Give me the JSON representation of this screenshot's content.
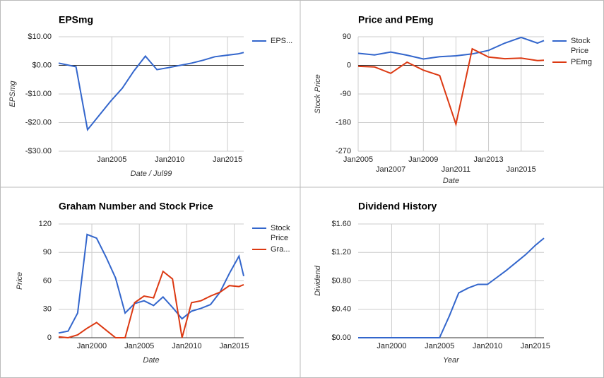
{
  "chart_data": [
    {
      "type": "line",
      "title": "EPSmg",
      "y_label": "EPSmg",
      "x_label": "Date / Jul99",
      "x": [
        2000.4,
        2001.9,
        2002.9,
        2003.9,
        2004.9,
        2005.9,
        2006.9,
        2007.9,
        2008.9,
        2009.9,
        2010.9,
        2011.9,
        2012.9,
        2013.9,
        2014.9,
        2015.9,
        2016.4
      ],
      "series": [
        {
          "name": "EPS...",
          "color": "#3366cc",
          "values": [
            0.8,
            -0.5,
            -22.5,
            -17.5,
            -12.5,
            -8,
            -2,
            3.2,
            -1.5,
            -0.8,
            0,
            0.8,
            1.8,
            3,
            3.5,
            4,
            4.5
          ]
        }
      ],
      "xlim": [
        2000.4,
        2016.4
      ],
      "xticks": [
        {
          "value": 2005,
          "label": "Jan2005"
        },
        {
          "value": 2010,
          "label": "Jan2010"
        },
        {
          "value": 2015,
          "label": "Jan2015"
        }
      ],
      "ylim": [
        -30,
        10
      ],
      "yticks": [
        {
          "value": 10,
          "label": "$10.00"
        },
        {
          "value": 0,
          "label": "$0.00"
        },
        {
          "value": -10,
          "label": "-$10.00"
        },
        {
          "value": -20,
          "label": "-$20.00"
        },
        {
          "value": -30,
          "label": "-$30.00"
        }
      ],
      "grid": true,
      "legend": "right"
    },
    {
      "type": "line",
      "title": "Price and PEmg",
      "y_label": "Stock Price",
      "x_label": "Date",
      "x": [
        2005,
        2006,
        2007,
        2008,
        2009,
        2010,
        2011,
        2012,
        2013,
        2014,
        2015,
        2016,
        2016.4
      ],
      "series": [
        {
          "name": "Stock Price",
          "color": "#3366cc",
          "values": [
            38,
            33,
            42,
            32,
            20,
            27,
            30,
            36,
            47,
            70,
            88,
            70,
            78
          ]
        },
        {
          "name": "PEmg",
          "color": "#dc3912",
          "values": [
            -3,
            -5,
            -25,
            10,
            -15,
            -32,
            -185,
            52,
            26,
            21,
            23,
            15,
            16
          ]
        }
      ],
      "xlim": [
        2005,
        2016.4
      ],
      "xticks": [
        {
          "value": 2005,
          "label": "Jan2005"
        },
        {
          "value": 2007,
          "label": "Jan2007"
        },
        {
          "value": 2009,
          "label": "Jan2009"
        },
        {
          "value": 2011,
          "label": "Jan2011"
        },
        {
          "value": 2013,
          "label": "Jan2013"
        },
        {
          "value": 2015,
          "label": "Jan2015"
        }
      ],
      "ylim": [
        -270,
        90
      ],
      "yticks": [
        90,
        0,
        -90,
        -180,
        -270
      ],
      "grid": true,
      "legend": "right"
    },
    {
      "type": "line",
      "title": "Graham Number and Stock Price",
      "y_label": "Price",
      "x_label": "Date",
      "x": [
        1996.5,
        1997.5,
        1998.5,
        1999.5,
        2000.5,
        2001.5,
        2002.5,
        2003.5,
        2004.5,
        2005.5,
        2006.5,
        2007.5,
        2008.5,
        2009.5,
        2010.5,
        2011.5,
        2012.5,
        2013.5,
        2014.5,
        2015.5,
        2016
      ],
      "series": [
        {
          "name": "Stock Price",
          "color": "#3366cc",
          "values": [
            5,
            7,
            26,
            109,
            105,
            85,
            63,
            26,
            36,
            39,
            34,
            43,
            32,
            20,
            28,
            31,
            35,
            48,
            68,
            86,
            65
          ]
        },
        {
          "name": "Gra...",
          "color": "#dc3912",
          "values": [
            1,
            0,
            3,
            10,
            16,
            8,
            0,
            0,
            37,
            44,
            42,
            70,
            62,
            0,
            37,
            39,
            44,
            48,
            55,
            54,
            56
          ]
        }
      ],
      "xlim": [
        1996.5,
        2016
      ],
      "xticks": [
        {
          "value": 2000,
          "label": "Jan2000"
        },
        {
          "value": 2005,
          "label": "Jan2005"
        },
        {
          "value": 2010,
          "label": "Jan2010"
        },
        {
          "value": 2015,
          "label": "Jan2015"
        }
      ],
      "ylim": [
        0,
        120
      ],
      "yticks": [
        120,
        90,
        60,
        30,
        0
      ],
      "grid": true,
      "legend": "right"
    },
    {
      "type": "line",
      "title": "Dividend History",
      "y_label": "Dividend",
      "x_label": "Year",
      "x": [
        1996.5,
        1998,
        2000,
        2002,
        2004,
        2005,
        2006,
        2007,
        2008,
        2009,
        2010,
        2011,
        2012,
        2013,
        2014,
        2015,
        2015.9
      ],
      "series": [
        {
          "name": "Dividend",
          "color": "#3366cc",
          "values": [
            0,
            0,
            0,
            0,
            0,
            0,
            0.3,
            0.63,
            0.7,
            0.75,
            0.75,
            0.85,
            0.95,
            1.06,
            1.17,
            1.3,
            1.4
          ]
        }
      ],
      "xlim": [
        1996.5,
        2015.9
      ],
      "xticks": [
        {
          "value": 2000,
          "label": "Jan2000"
        },
        {
          "value": 2005,
          "label": "Jan2005"
        },
        {
          "value": 2010,
          "label": "Jan2010"
        },
        {
          "value": 2015,
          "label": "Jan2015"
        }
      ],
      "ylim": [
        0,
        1.6
      ],
      "yticks": [
        {
          "value": 1.6,
          "label": "$1.60"
        },
        {
          "value": 1.2,
          "label": "$1.20"
        },
        {
          "value": 0.8,
          "label": "$0.80"
        },
        {
          "value": 0.4,
          "label": "$0.40"
        },
        {
          "value": 0,
          "label": "$0.00"
        }
      ],
      "grid": true,
      "legend": "none"
    }
  ]
}
